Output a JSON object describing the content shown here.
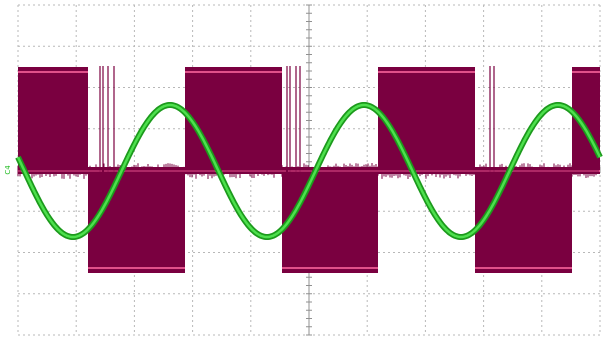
{
  "screen": {
    "channel_marker": "C4"
  }
}
